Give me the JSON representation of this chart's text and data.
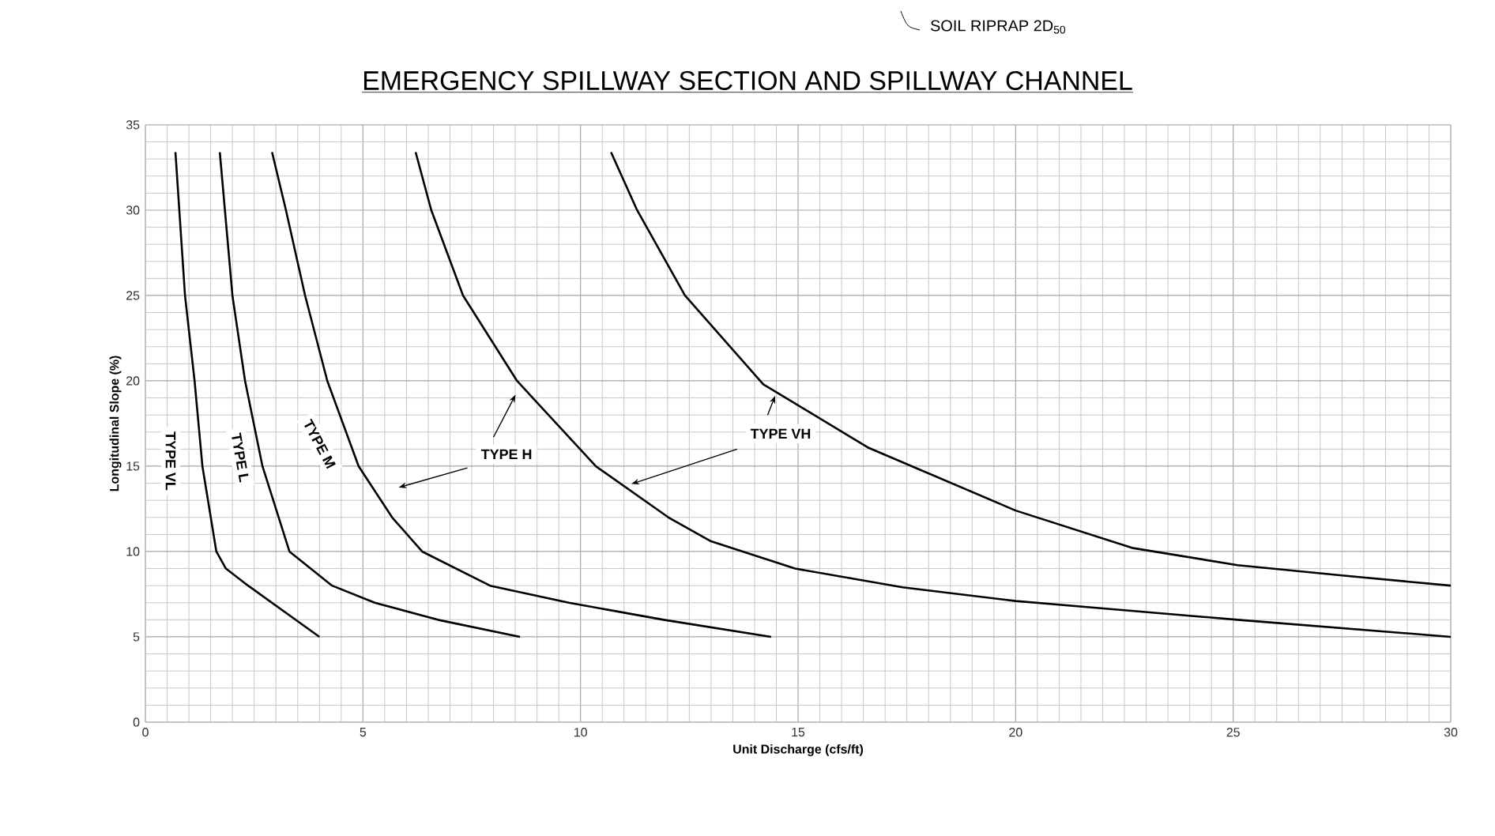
{
  "chart_data": {
    "type": "line",
    "title": "EMERGENCY SPILLWAY SECTION AND SPILLWAY CHANNEL",
    "annotations": [
      "SOIL RIPRAP 2D$_{50}$"
    ],
    "xlabel": "Unit Discharge (cfs/ft)",
    "ylabel": "Longitudinal Slope (%)",
    "xlim": [
      0,
      30
    ],
    "ylim": [
      0,
      35
    ],
    "xticks": [
      0,
      5,
      10,
      15,
      20,
      25,
      30
    ],
    "yticks": [
      0,
      5,
      10,
      15,
      20,
      25,
      30,
      35
    ],
    "grid": true,
    "line_style": "solid",
    "series": [
      {
        "name": "TYPE VL",
        "color": "#000000",
        "x": [
          0.69,
          0.91,
          1.13,
          1.31,
          1.63,
          1.85,
          2.36,
          4.0
        ],
        "values": [
          33.4,
          25,
          20,
          15,
          10,
          9,
          8,
          5
        ]
      },
      {
        "name": "TYPE L",
        "color": "#000000",
        "x": [
          1.71,
          2.0,
          2.29,
          2.69,
          3.31,
          4.29,
          5.27,
          6.72,
          8.61
        ],
        "values": [
          33.4,
          25,
          20,
          15,
          10,
          8,
          7,
          6,
          5
        ]
      },
      {
        "name": "TYPE M",
        "color": "#000000",
        "x": [
          2.91,
          3.23,
          3.67,
          4.18,
          4.9,
          5.67,
          6.36,
          7.92,
          9.73,
          11.91,
          14.38
        ],
        "values": [
          33.4,
          30,
          25,
          20,
          15,
          12,
          10,
          8,
          7,
          6,
          5
        ]
      },
      {
        "name": "TYPE H",
        "color": "#000000",
        "x": [
          6.21,
          6.57,
          7.3,
          8.54,
          10.35,
          12.02,
          13.0,
          14.93,
          17.4,
          20.0,
          25.1,
          30
        ],
        "values": [
          33.4,
          30,
          25,
          20,
          15,
          12,
          10.6,
          9,
          7.9,
          7.1,
          6,
          5
        ]
      },
      {
        "name": "TYPE VH",
        "color": "#000000",
        "x": [
          10.7,
          11.3,
          12.4,
          14.2,
          16.6,
          20.0,
          22.7,
          25.1,
          27.5,
          30
        ],
        "values": [
          33.4,
          30,
          25,
          19.8,
          16.1,
          12.4,
          10.2,
          9.2,
          8.6,
          8.0
        ]
      }
    ]
  }
}
